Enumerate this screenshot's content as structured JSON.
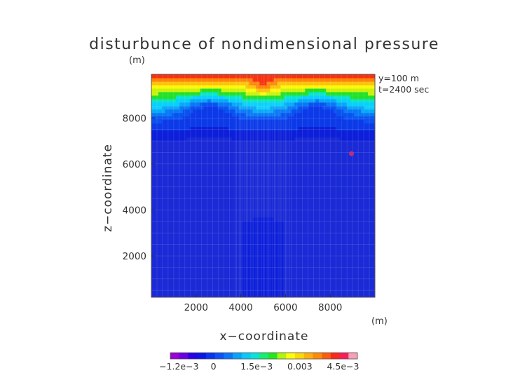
{
  "chart_data": {
    "type": "heatmap",
    "title": "disturbunce of nondimensional pressure",
    "title_unit": "(m)",
    "xlabel": "x−coordinate",
    "xunit": "(m)",
    "ylabel": "z−coordinate",
    "annotations": [
      "y=100  m",
      "t=2400 sec"
    ],
    "xlim": [
      0,
      10000
    ],
    "ylim": [
      200,
      9900
    ],
    "xticks": [
      2000,
      4000,
      6000,
      8000
    ],
    "xtick_labels": [
      "2000",
      "4000",
      "6000",
      "8000"
    ],
    "yticks": [
      2000,
      4000,
      6000,
      8000
    ],
    "ytick_labels": [
      "2000",
      "4000",
      "6000",
      "8000"
    ],
    "grid": true,
    "colorbar": {
      "position": "bottom",
      "min": -0.0015,
      "max": 0.005,
      "tick_values": [
        -0.0012,
        0,
        0.0015,
        0.003,
        0.0045
      ],
      "tick_labels": [
        "−1.2e−3",
        "0",
        "1.5e−3",
        "0.003",
        "4.5e−3"
      ],
      "levels": [
        "#9b00d6",
        "#6a00e0",
        "#2a00e6",
        "#0a16e6",
        "#0a34ee",
        "#0c52f5",
        "#0c74fa",
        "#0aa2fb",
        "#0ac8fb",
        "#07e2dc",
        "#15ee70",
        "#22e81e",
        "#b0f50c",
        "#fdfc0a",
        "#fdd80a",
        "#fdb10a",
        "#fd8b0a",
        "#fd5d0a",
        "#fb2a1f",
        "#f81e5a",
        "#f7a0b8"
      ]
    },
    "marker": {
      "x": 8950,
      "z": 6450,
      "color": "#d2306e"
    },
    "color_stops": [
      {
        "value": -0.0009,
        "color": "#1a2ad6"
      },
      {
        "value": -0.0005,
        "color": "#0d1fd9"
      },
      {
        "value": -0.0002,
        "color": "#0c3ae8"
      },
      {
        "value": 0.0002,
        "color": "#0a52f0"
      },
      {
        "value": 0.0005,
        "color": "#0a78f6"
      },
      {
        "value": 0.0008,
        "color": "#0aa8f8"
      },
      {
        "value": 0.0011,
        "color": "#0acffc"
      },
      {
        "value": 0.0015,
        "color": "#0ae4c8"
      },
      {
        "value": 0.0019,
        "color": "#22e028"
      },
      {
        "value": 0.0025,
        "color": "#c9f20c"
      },
      {
        "value": 0.003,
        "color": "#fdf70a"
      },
      {
        "value": 0.0035,
        "color": "#fdc00a"
      },
      {
        "value": 0.004,
        "color": "#fd820a"
      },
      {
        "value": 0.0046,
        "color": "#f8300f"
      },
      {
        "value": 0.0054,
        "color": "#ef1020"
      }
    ]
  }
}
